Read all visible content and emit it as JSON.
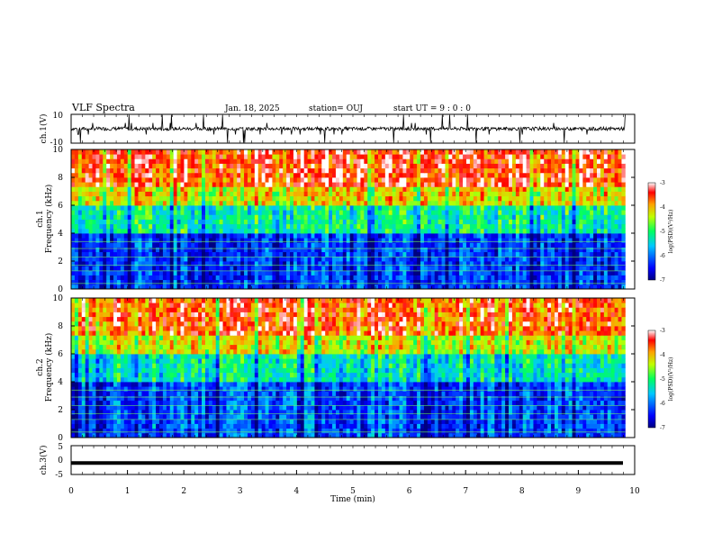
{
  "header": {
    "title": "VLF Spectra",
    "date": "Jan. 18, 2025",
    "station": "station= OUJ",
    "start_ut": "start UT =  9 : 0 : 0"
  },
  "chart_data": [
    {
      "type": "line",
      "ylabel": "ch.1(V)",
      "ylim": [
        -10,
        10
      ],
      "y_ticks": [
        "10",
        "-10"
      ],
      "xlim": [
        0,
        10
      ],
      "description": "broadband waveform near 0 V with spikes to about ±10 V",
      "values": [
        0,
        0,
        1,
        -1,
        0,
        10,
        -9,
        0,
        1,
        0,
        -1,
        0,
        9,
        -10,
        0,
        0,
        1,
        -1,
        0,
        0
      ]
    },
    {
      "type": "heatmap",
      "ylabel": "ch.1\nFrequency (kHz)",
      "ylim": [
        0,
        10
      ],
      "y_ticks": [
        "0",
        "2",
        "4",
        "6",
        "8",
        "10"
      ],
      "xlim": [
        0,
        10
      ],
      "colorbar": {
        "label": "log(PSD)(V²/Hz)",
        "range": [
          -7,
          -3
        ],
        "ticks": [
          "-3",
          "-4",
          "-5",
          "-6",
          "-7"
        ]
      },
      "data_end_min": 9.83,
      "regions": [
        {
          "from_khz": 0,
          "to_khz": 4,
          "log_psd": -6.3
        },
        {
          "from_khz": 4,
          "to_khz": 6,
          "log_psd": -5.2
        },
        {
          "from_khz": 6,
          "to_khz": 7.5,
          "log_psd": -4.2
        },
        {
          "from_khz": 7.5,
          "to_khz": 10,
          "log_psd": -3.5
        }
      ]
    },
    {
      "type": "heatmap",
      "ylabel": "ch.2\nFrequency (kHz)",
      "ylim": [
        0,
        10
      ],
      "y_ticks": [
        "0",
        "2",
        "4",
        "6",
        "8",
        "10"
      ],
      "xlim": [
        0,
        10
      ],
      "colorbar": {
        "label": "log(PSD)(V²/Hz)",
        "range": [
          -7,
          -3
        ],
        "ticks": [
          "-3",
          "-4",
          "-5",
          "-6",
          "-7"
        ]
      },
      "data_end_min": 9.83,
      "regions": [
        {
          "from_khz": 0,
          "to_khz": 4,
          "log_psd": -6.2
        },
        {
          "from_khz": 4,
          "to_khz": 6,
          "log_psd": -5.3
        },
        {
          "from_khz": 6,
          "to_khz": 7.5,
          "log_psd": -4.3
        },
        {
          "from_khz": 7.5,
          "to_khz": 10,
          "log_psd": -3.6
        }
      ]
    },
    {
      "type": "line",
      "ylabel": "ch.3(V)",
      "ylim": [
        -5,
        5
      ],
      "y_ticks": [
        "5",
        "0",
        "-5"
      ],
      "xlim": [
        0,
        10
      ],
      "xlabel": "Time (min)",
      "x_ticks": [
        "0",
        "1",
        "2",
        "3",
        "4",
        "5",
        "6",
        "7",
        "8",
        "9",
        "10"
      ],
      "values": [
        -1,
        -1,
        -1,
        -1,
        -1,
        -1,
        -1,
        -1,
        -1,
        -1,
        -1
      ]
    }
  ]
}
